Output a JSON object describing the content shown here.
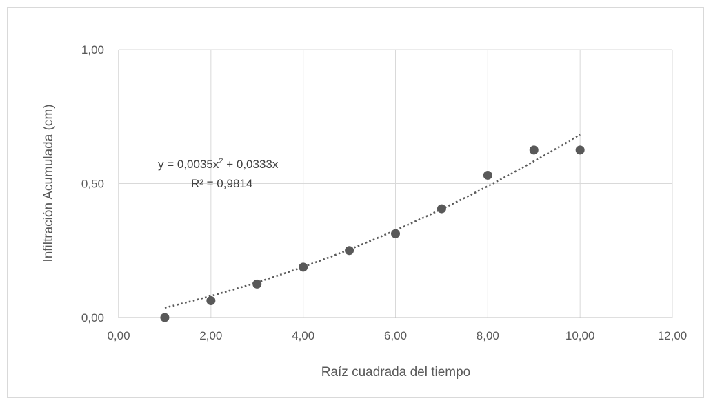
{
  "chart_data": {
    "type": "scatter",
    "title": "",
    "xlabel": "Raíz cuadrada del tiempo",
    "ylabel": "Infiltración Acumulada (cm)",
    "xlim": [
      0,
      12
    ],
    "ylim": [
      0,
      1
    ],
    "x_ticks": [
      0,
      2,
      4,
      6,
      8,
      10,
      12
    ],
    "x_tick_labels": [
      "0,00",
      "2,00",
      "4,00",
      "6,00",
      "8,00",
      "10,00",
      "12,00"
    ],
    "y_ticks": [
      0,
      0.5,
      1
    ],
    "y_tick_labels": [
      "0,00",
      "0,50",
      "1,00"
    ],
    "grid": true,
    "legend": "none",
    "series": [
      {
        "x": [
          1,
          2,
          3,
          4,
          5,
          6,
          7,
          8,
          9,
          10
        ],
        "y": [
          0.0,
          0.063,
          0.125,
          0.188,
          0.25,
          0.313,
          0.406,
          0.531,
          0.625,
          0.625
        ],
        "color": "#595959"
      }
    ],
    "trendline": {
      "type": "polynomial",
      "order": 2,
      "coefficients": {
        "a": 0.0035,
        "b": 0.0333,
        "c": 0
      },
      "x_range": [
        1,
        10
      ],
      "style": "dotted",
      "color": "#595959",
      "equation_text": {
        "prefix": "y = 0,0035x",
        "sup": "2",
        "suffix": " + 0,0333x"
      },
      "r_squared_text": "R² = 0,9814"
    }
  }
}
